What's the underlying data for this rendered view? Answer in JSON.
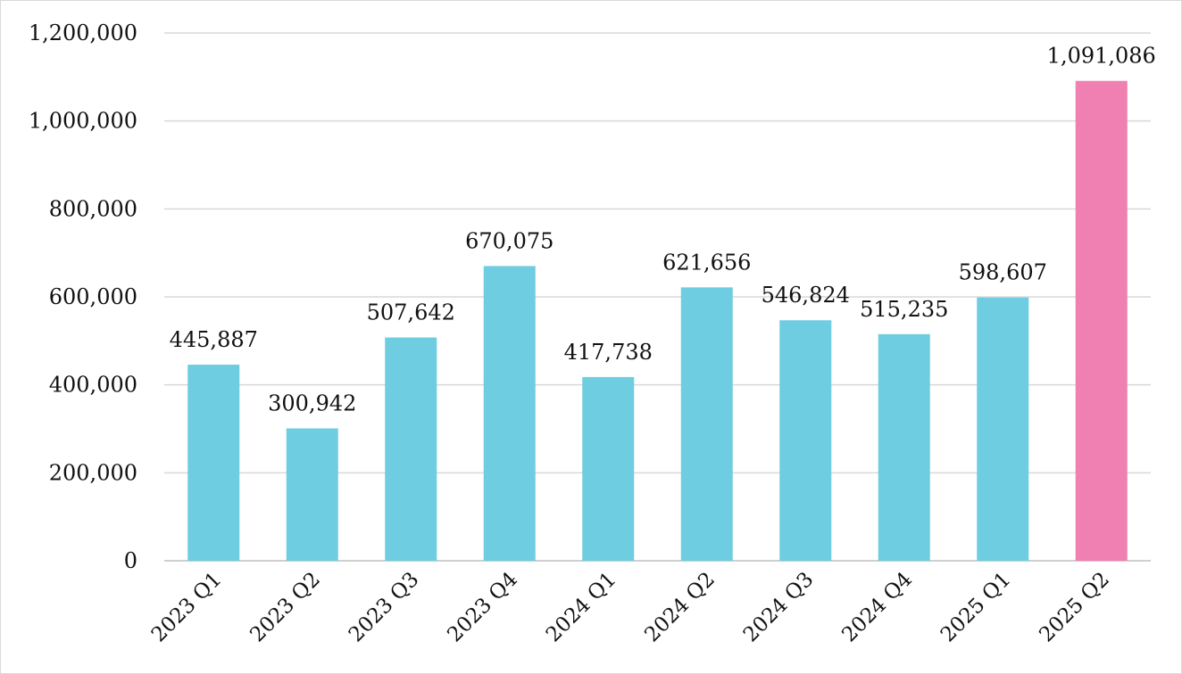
{
  "chart_data": {
    "type": "bar",
    "title": "",
    "xlabel": "",
    "ylabel": "",
    "categories": [
      "2023 Q1",
      "2023 Q2",
      "2023 Q3",
      "2023 Q4",
      "2024 Q1",
      "2024 Q2",
      "2024 Q3",
      "2024 Q4",
      "2025 Q1",
      "2025 Q2"
    ],
    "values": [
      445887,
      300942,
      507642,
      670075,
      417738,
      621656,
      546824,
      515235,
      598607,
      1091086
    ],
    "value_labels": [
      "445,887",
      "300,942",
      "507,642",
      "670,075",
      "417,738",
      "621,656",
      "546,824",
      "515,235",
      "598,607",
      "1,091,086"
    ],
    "ylim": [
      0,
      1200000
    ],
    "yticks": [
      0,
      200000,
      400000,
      600000,
      800000,
      1000000,
      1200000
    ],
    "ytick_labels": [
      "0",
      "200,000",
      "400,000",
      "600,000",
      "800,000",
      "1,000,000",
      "1,200,000"
    ],
    "grid": true,
    "legend": "none",
    "colors": {
      "default_bar": "#6ecde0",
      "highlight_bar": "#f07fb2",
      "gridline": "#d9d9d9",
      "text": "#111111"
    },
    "highlight_index": 9
  }
}
